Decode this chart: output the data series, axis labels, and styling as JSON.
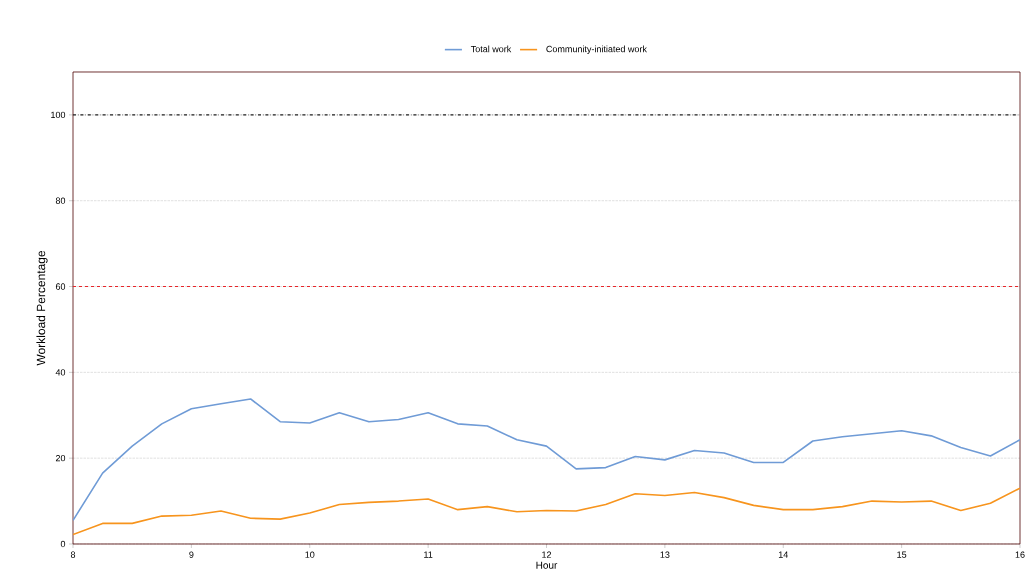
{
  "chart_data": {
    "type": "line",
    "xlabel": "Hour",
    "ylabel": "Workload Percentage",
    "x": [
      8,
      8.25,
      8.5,
      8.75,
      9,
      9.25,
      9.5,
      9.75,
      10,
      10.25,
      10.5,
      10.75,
      11,
      11.25,
      11.5,
      11.75,
      12,
      12.25,
      12.5,
      12.75,
      13,
      13.25,
      13.5,
      13.75,
      14,
      14.25,
      14.5,
      14.75,
      15,
      15.25,
      15.5,
      15.75,
      16
    ],
    "series": [
      {
        "name": "Total work",
        "color": "#6f9bd6",
        "values": [
          5.5,
          16.5,
          22.8,
          28,
          31.5,
          32.7,
          33.8,
          28.5,
          28.2,
          30.6,
          28.5,
          29,
          30.6,
          28,
          27.5,
          24.3,
          22.8,
          17.5,
          17.8,
          20.4,
          19.6,
          21.8,
          21.2,
          19,
          19,
          24,
          25,
          25.7,
          26.4,
          25.2,
          22.5,
          20.5,
          24.3
        ]
      },
      {
        "name": "Community-initiated work",
        "color": "#f7941d",
        "values": [
          2.2,
          4.8,
          4.8,
          6.5,
          6.7,
          7.7,
          6,
          5.8,
          7.2,
          9.2,
          9.7,
          10,
          10.5,
          8,
          8.7,
          7.5,
          7.8,
          7.7,
          9.2,
          11.7,
          11.3,
          12,
          10.8,
          9,
          8,
          8,
          8.7,
          10,
          9.8,
          10,
          7.8,
          9.5,
          13
        ]
      }
    ],
    "xlim": [
      8,
      16
    ],
    "xticks": [
      8,
      9,
      10,
      11,
      12,
      13,
      14,
      15,
      16
    ],
    "ylim": [
      0,
      110
    ],
    "yticks": [
      0,
      20,
      40,
      60,
      80,
      100
    ],
    "ref_lines": [
      {
        "axis": "y",
        "value": 100,
        "color": "#222222",
        "line_style": "dashdot"
      },
      {
        "axis": "y",
        "value": 60,
        "color": "#e8262a",
        "line_style": "dashed"
      }
    ],
    "grid": "y",
    "legend": "top",
    "marker": "none",
    "line_style": "solid"
  }
}
